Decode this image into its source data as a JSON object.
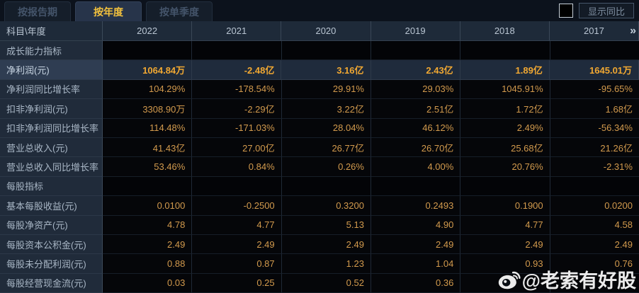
{
  "tabs": [
    {
      "label": "按报告期",
      "active": false
    },
    {
      "label": "按年度",
      "active": true
    },
    {
      "label": "按单季度",
      "active": false
    }
  ],
  "controls": {
    "show_yoy_label": "显示同比",
    "checkbox_checked": false
  },
  "table": {
    "corner_header": "科目\\年度",
    "year_columns": [
      "2022",
      "2021",
      "2020",
      "2019",
      "2018",
      "2017"
    ],
    "more_columns_glyph": "»",
    "rows": [
      {
        "label": "成长能力指标",
        "type": "section",
        "values": [
          "",
          "",
          "",
          "",
          "",
          ""
        ]
      },
      {
        "label": "净利润(元)",
        "type": "highlight",
        "values": [
          "1064.84万",
          "-2.48亿",
          "3.16亿",
          "2.43亿",
          "1.89亿",
          "1645.01万"
        ]
      },
      {
        "label": "净利润同比增长率",
        "type": "data",
        "values": [
          "104.29%",
          "-178.54%",
          "29.91%",
          "29.03%",
          "1045.91%",
          "-95.65%"
        ]
      },
      {
        "label": "扣非净利润(元)",
        "type": "data",
        "values": [
          "3308.90万",
          "-2.29亿",
          "3.22亿",
          "2.51亿",
          "1.72亿",
          "1.68亿"
        ]
      },
      {
        "label": "扣非净利润同比增长率",
        "type": "data",
        "values": [
          "114.48%",
          "-171.03%",
          "28.04%",
          "46.12%",
          "2.49%",
          "-56.34%"
        ]
      },
      {
        "label": "营业总收入(元)",
        "type": "data",
        "values": [
          "41.43亿",
          "27.00亿",
          "26.77亿",
          "26.70亿",
          "25.68亿",
          "21.26亿"
        ]
      },
      {
        "label": "营业总收入同比增长率",
        "type": "data",
        "values": [
          "53.46%",
          "0.84%",
          "0.26%",
          "4.00%",
          "20.76%",
          "-2.31%"
        ]
      },
      {
        "label": "每股指标",
        "type": "section",
        "values": [
          "",
          "",
          "",
          "",
          "",
          ""
        ]
      },
      {
        "label": "基本每股收益(元)",
        "type": "data",
        "values": [
          "0.0100",
          "-0.2500",
          "0.3200",
          "0.2493",
          "0.1900",
          "0.0200"
        ]
      },
      {
        "label": "每股净资产(元)",
        "type": "data",
        "values": [
          "4.78",
          "4.77",
          "5.13",
          "4.90",
          "4.77",
          "4.58"
        ]
      },
      {
        "label": "每股资本公积金(元)",
        "type": "data",
        "values": [
          "2.49",
          "2.49",
          "2.49",
          "2.49",
          "2.49",
          "2.49"
        ]
      },
      {
        "label": "每股未分配利润(元)",
        "type": "data",
        "values": [
          "0.88",
          "0.87",
          "1.23",
          "1.04",
          "0.93",
          "0.76"
        ]
      },
      {
        "label": "每股经营现金流(元)",
        "type": "data",
        "values": [
          "0.03",
          "0.25",
          "0.52",
          "0.36",
          "",
          ""
        ]
      }
    ]
  },
  "watermark": {
    "text": "@老索有好股"
  },
  "colors": {
    "accent_gold": "#f2c13d",
    "value_gold": "#d29a4d",
    "highlight_value_gold": "#f1a832",
    "label_bg": "#202b3a",
    "header_bg": "#1e2a39",
    "highlight_row_bg": "#1f2b3c",
    "page_bg": "#0a0e14"
  }
}
